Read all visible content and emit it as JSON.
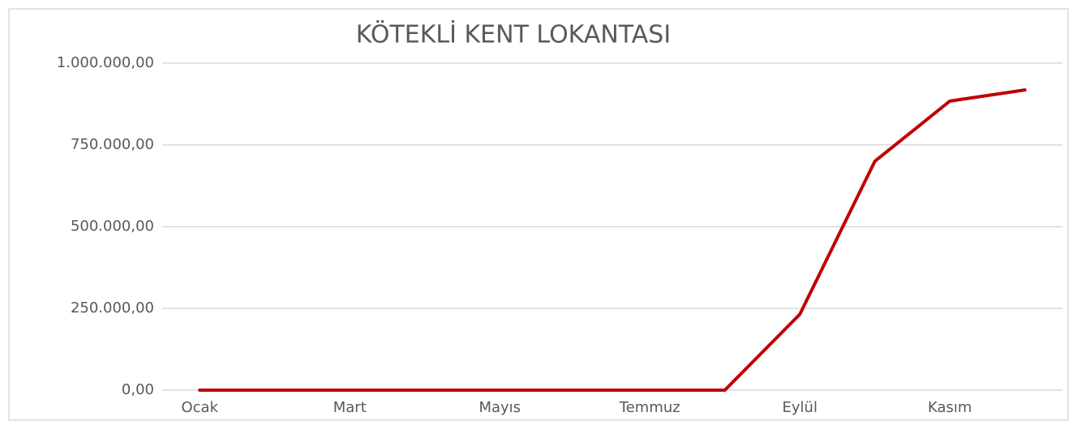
{
  "chart_data": {
    "type": "line",
    "title": "KÖTEKLİ KENT LOKANTASI",
    "categories": [
      "Ocak",
      null,
      "Mart",
      null,
      "Mayıs",
      null,
      "Temmuz",
      null,
      "Eylül",
      null,
      "Kasım",
      null
    ],
    "series": [
      {
        "name": "KÖTEKLİ KENT LOKANTASI",
        "color": "#c00000",
        "values": [
          0,
          0,
          0,
          0,
          0,
          0,
          0,
          0,
          232000,
          700000,
          884000,
          918000
        ]
      }
    ],
    "ylim": [
      0,
      1000000
    ],
    "yticks": [
      {
        "value": 0,
        "label": "0,00"
      },
      {
        "value": 250000,
        "label": "250.000,00"
      },
      {
        "value": 500000,
        "label": "500.000,00"
      },
      {
        "value": 750000,
        "label": "750.000,00"
      },
      {
        "value": 1000000,
        "label": "1.000.000,00"
      }
    ],
    "grid": true
  }
}
